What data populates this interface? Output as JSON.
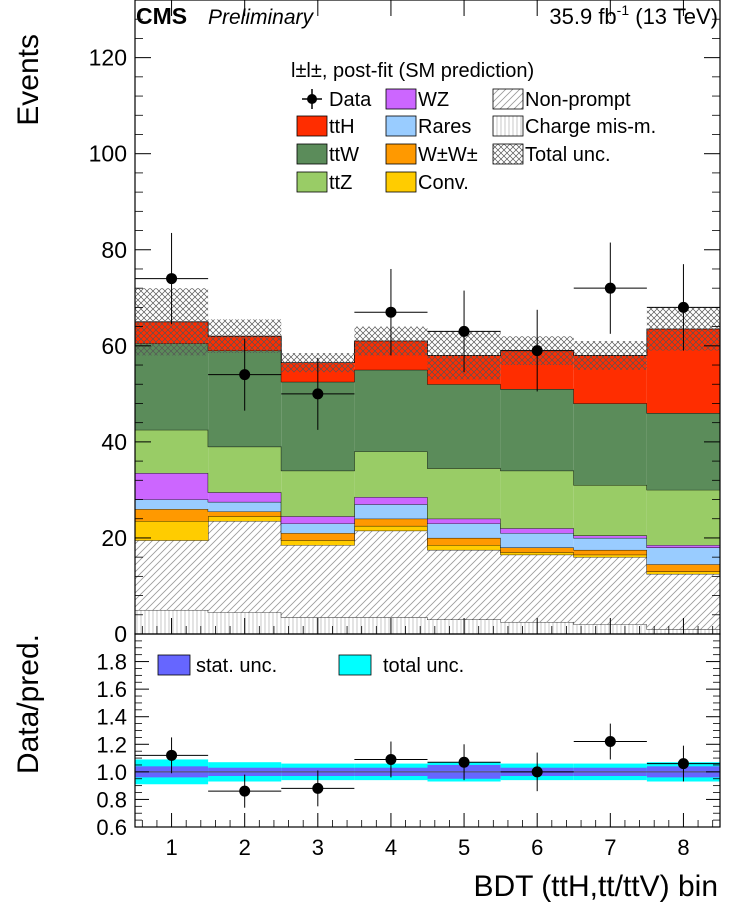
{
  "header": {
    "experiment": "CMS",
    "status": "Preliminary",
    "lumi_value": "35.9 fb",
    "lumi_exp": "-1",
    "energy": "(13 TeV)"
  },
  "legend": {
    "title": "l±l±, post-fit (SM prediction)",
    "entries": [
      {
        "label": "Data",
        "kind": "marker",
        "color": "#000000"
      },
      {
        "label": "ttH",
        "kind": "fill",
        "color": "#ff2d00"
      },
      {
        "label": "ttW",
        "kind": "fill",
        "color": "#5b8c5a"
      },
      {
        "label": "ttZ",
        "kind": "fill",
        "color": "#99cc66"
      },
      {
        "label": "WZ",
        "kind": "fill",
        "color": "#cc66ff"
      },
      {
        "label": "Rares",
        "kind": "fill",
        "color": "#99ccff"
      },
      {
        "label": "W±W±",
        "kind": "fill",
        "color": "#ff9900"
      },
      {
        "label": "Conv.",
        "kind": "fill",
        "color": "#ffcc00"
      },
      {
        "label": "Non-prompt",
        "kind": "hatch"
      },
      {
        "label": "Charge mis-m.",
        "kind": "vlines"
      },
      {
        "label": "Total unc.",
        "kind": "cross"
      }
    ],
    "ratio_entries": [
      {
        "label": "stat. unc.",
        "color": "#6666ff"
      },
      {
        "label": "total unc.",
        "color": "#00ffff"
      }
    ]
  },
  "chart_data": {
    "type": "bar",
    "stacked": true,
    "categories": [
      "1",
      "2",
      "3",
      "4",
      "5",
      "6",
      "7",
      "8"
    ],
    "xlabel": "BDT (ttH,tt/ttV) bin",
    "ylabel": "Events",
    "ylim": [
      0,
      132
    ],
    "yticks": [
      0,
      20,
      40,
      60,
      80,
      100,
      120
    ],
    "series": [
      {
        "name": "Charge mis-m.",
        "values": [
          5,
          4.5,
          3.5,
          3.5,
          3,
          2.5,
          2,
          1
        ]
      },
      {
        "name": "Non-prompt",
        "values": [
          14.5,
          19,
          15,
          18,
          14.5,
          14,
          14,
          11.5
        ]
      },
      {
        "name": "Conv.",
        "values": [
          4,
          1,
          1,
          1,
          1,
          0.5,
          0.5,
          0.5
        ]
      },
      {
        "name": "W±W±",
        "values": [
          2.5,
          1,
          1.5,
          1.5,
          1.5,
          1,
          1,
          1.5
        ]
      },
      {
        "name": "Rares",
        "values": [
          2,
          2,
          2,
          3,
          3,
          3,
          2.5,
          3.5
        ]
      },
      {
        "name": "WZ",
        "values": [
          5.5,
          2,
          1.5,
          1.5,
          1,
          1,
          0.5,
          0.5
        ]
      },
      {
        "name": "ttZ",
        "values": [
          9,
          9.5,
          9.5,
          9.5,
          10.5,
          12,
          10.5,
          11.5
        ]
      },
      {
        "name": "ttW",
        "values": [
          18,
          20,
          18.5,
          17,
          17.5,
          17,
          17,
          16
        ]
      },
      {
        "name": "ttH",
        "values": [
          4.5,
          3,
          4,
          6,
          6,
          8,
          10,
          17.5
        ]
      }
    ],
    "total_unc_up": [
      72,
      65.5,
      58.5,
      64,
      63,
      62,
      61,
      68
    ],
    "data": [
      74,
      54,
      50,
      67,
      63,
      59,
      72,
      68
    ],
    "data_err": [
      9.5,
      7.5,
      7.5,
      9,
      8.5,
      8.5,
      9.5,
      9
    ],
    "ratio": {
      "ylabel": "Data/pred.",
      "ylim": [
        0.6,
        2.0
      ],
      "yticks": [
        "0.6",
        "0.8",
        "1.0",
        "1.2",
        "1.4",
        "1.6",
        "1.8"
      ],
      "values": [
        1.12,
        0.86,
        0.88,
        1.09,
        1.07,
        1.0,
        1.22,
        1.06
      ],
      "errors": [
        0.13,
        0.12,
        0.13,
        0.13,
        0.13,
        0.14,
        0.13,
        0.13
      ],
      "stat_unc": [
        0.04,
        0.03,
        0.03,
        0.03,
        0.05,
        0.03,
        0.03,
        0.04
      ],
      "total_unc": [
        0.09,
        0.07,
        0.06,
        0.06,
        0.07,
        0.06,
        0.06,
        0.07
      ]
    }
  }
}
